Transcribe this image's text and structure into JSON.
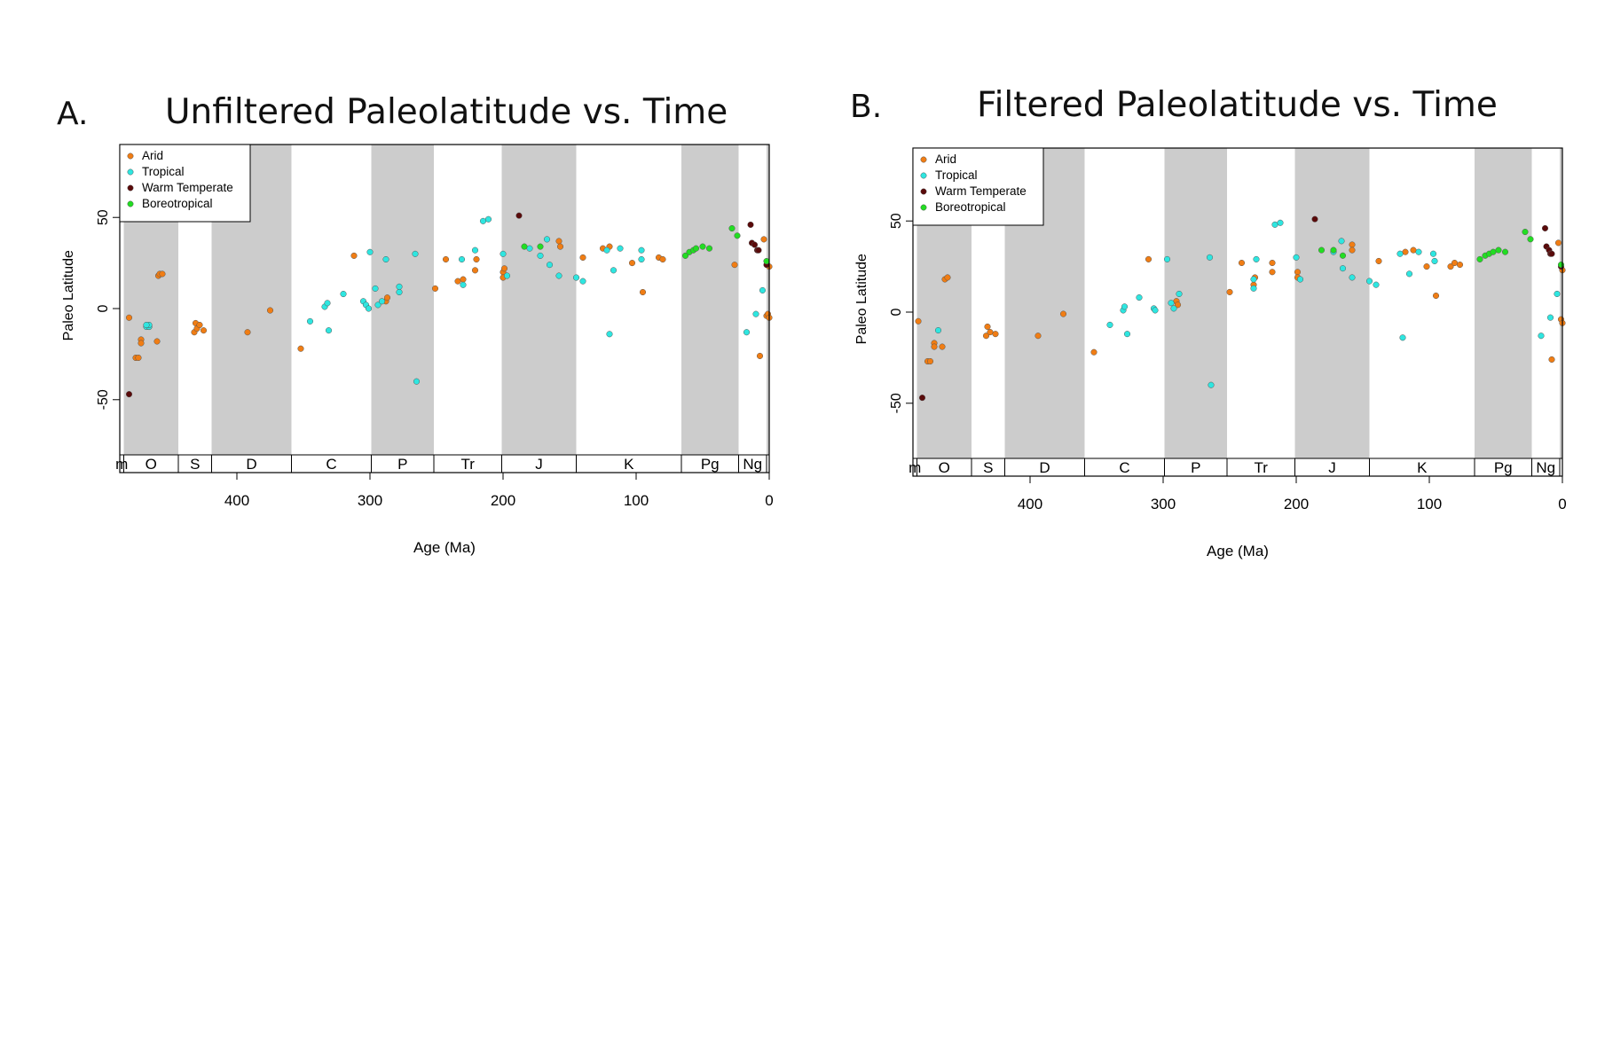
{
  "panels": [
    {
      "letter": "A.",
      "title": "Unfiltered Paleolatitude vs. Time"
    },
    {
      "letter": "B.",
      "title": "Filtered Paleolatitude vs. Time"
    }
  ],
  "colors": {
    "Arid": "#f07d14",
    "Tropical": "#2ee6e0",
    "Warm Temperate": "#5a0a0a",
    "Boreotropical": "#22dd22",
    "band": "#cccccc"
  },
  "periods": [
    {
      "label": "m",
      "start": 488,
      "end": 485,
      "shade": false
    },
    {
      "label": "O",
      "start": 485,
      "end": 444,
      "shade": true
    },
    {
      "label": "S",
      "start": 444,
      "end": 419,
      "shade": false
    },
    {
      "label": "D",
      "start": 419,
      "end": 359,
      "shade": true
    },
    {
      "label": "C",
      "start": 359,
      "end": 299,
      "shade": false
    },
    {
      "label": "P",
      "start": 299,
      "end": 252,
      "shade": true
    },
    {
      "label": "Tr",
      "start": 252,
      "end": 201,
      "shade": false
    },
    {
      "label": "J",
      "start": 201,
      "end": 145,
      "shade": true
    },
    {
      "label": "K",
      "start": 145,
      "end": 66,
      "shade": false
    },
    {
      "label": "Pg",
      "start": 66,
      "end": 23,
      "shade": true
    },
    {
      "label": "Ng",
      "start": 23,
      "end": 2,
      "shade": false
    },
    {
      "label": "",
      "start": 2,
      "end": 0,
      "shade": true
    }
  ],
  "chart_data": [
    {
      "type": "scatter",
      "title": "Unfiltered Paleolatitude vs. Time",
      "xlabel": "Age (Ma)",
      "ylabel": "Paleo Latitude",
      "xlim": [
        488,
        0
      ],
      "ylim": [
        -90,
        90
      ],
      "xticks": [
        400,
        300,
        200,
        100,
        0
      ],
      "yticks": [
        -50,
        0,
        50
      ],
      "legend_position": "top-left",
      "legend": [
        "Arid",
        "Tropical",
        "Warm Temperate",
        "Boreotropical"
      ],
      "series": [
        {
          "name": "Arid",
          "points": [
            [
              481,
              -5
            ],
            [
              476,
              -27
            ],
            [
              474,
              -27
            ],
            [
              472,
              -17
            ],
            [
              472,
              -19
            ],
            [
              466,
              -10
            ],
            [
              460,
              -18
            ],
            [
              459,
              18
            ],
            [
              458,
              19
            ],
            [
              456,
              19
            ],
            [
              432,
              -13
            ],
            [
              431,
              -8
            ],
            [
              430,
              -11
            ],
            [
              428,
              -9
            ],
            [
              425,
              -12
            ],
            [
              392,
              -13
            ],
            [
              375,
              -1
            ],
            [
              352,
              -22
            ],
            [
              312,
              29
            ],
            [
              288,
              4
            ],
            [
              287,
              6
            ],
            [
              251,
              11
            ],
            [
              243,
              27
            ],
            [
              234,
              15
            ],
            [
              230,
              16
            ],
            [
              221,
              21
            ],
            [
              220,
              27
            ],
            [
              200,
              20
            ],
            [
              199,
              22
            ],
            [
              200,
              17
            ],
            [
              158,
              37
            ],
            [
              157,
              34
            ],
            [
              140,
              28
            ],
            [
              125,
              33
            ],
            [
              120,
              34
            ],
            [
              103,
              25
            ],
            [
              95,
              9
            ],
            [
              83,
              28
            ],
            [
              80,
              27
            ],
            [
              26,
              24
            ],
            [
              7,
              -26
            ],
            [
              4,
              38
            ],
            [
              2,
              -4
            ],
            [
              1,
              -3
            ],
            [
              0,
              -5
            ],
            [
              0,
              23
            ]
          ]
        },
        {
          "name": "Tropical",
          "points": [
            [
              468,
              -10
            ],
            [
              466,
              -10
            ],
            [
              466,
              -9
            ],
            [
              468,
              -9
            ],
            [
              345,
              -7
            ],
            [
              334,
              1
            ],
            [
              332,
              3
            ],
            [
              331,
              -12
            ],
            [
              320,
              8
            ],
            [
              305,
              4
            ],
            [
              303,
              2
            ],
            [
              301,
              0
            ],
            [
              300,
              31
            ],
            [
              296,
              11
            ],
            [
              294,
              2
            ],
            [
              291,
              4
            ],
            [
              288,
              27
            ],
            [
              278,
              12
            ],
            [
              278,
              9
            ],
            [
              266,
              30
            ],
            [
              265,
              -40
            ],
            [
              231,
              27
            ],
            [
              230,
              13
            ],
            [
              221,
              32
            ],
            [
              215,
              48
            ],
            [
              211,
              49
            ],
            [
              200,
              30
            ],
            [
              197,
              18
            ],
            [
              180,
              33
            ],
            [
              172,
              29
            ],
            [
              167,
              38
            ],
            [
              165,
              24
            ],
            [
              158,
              18
            ],
            [
              145,
              17
            ],
            [
              140,
              15
            ],
            [
              122,
              32
            ],
            [
              120,
              -14
            ],
            [
              117,
              21
            ],
            [
              112,
              33
            ],
            [
              96,
              27
            ],
            [
              96,
              32
            ],
            [
              17,
              -13
            ],
            [
              10,
              -3
            ],
            [
              5,
              10
            ]
          ]
        },
        {
          "name": "Warm Temperate",
          "points": [
            [
              481,
              -47
            ],
            [
              188,
              51
            ],
            [
              14,
              46
            ],
            [
              13,
              36
            ],
            [
              11,
              35
            ],
            [
              9,
              32
            ],
            [
              8,
              32
            ],
            [
              2,
              24
            ]
          ]
        },
        {
          "name": "Boreotropical",
          "points": [
            [
              184,
              34
            ],
            [
              172,
              34
            ],
            [
              63,
              29
            ],
            [
              60,
              31
            ],
            [
              57,
              32
            ],
            [
              55,
              33
            ],
            [
              50,
              34
            ],
            [
              45,
              33
            ],
            [
              28,
              44
            ],
            [
              24,
              40
            ],
            [
              2,
              26
            ]
          ]
        }
      ]
    },
    {
      "type": "scatter",
      "title": "Filtered Paleolatitude vs. Time",
      "xlabel": "Age (Ma)",
      "ylabel": "Paleo Latitude",
      "xlim": [
        488,
        0
      ],
      "ylim": [
        -90,
        90
      ],
      "xticks": [
        400,
        300,
        200,
        100,
        0
      ],
      "yticks": [
        -50,
        0,
        50
      ],
      "legend_position": "top-left",
      "legend": [
        "Arid",
        "Tropical",
        "Warm Temperate",
        "Boreotropical"
      ],
      "series": [
        {
          "name": "Arid",
          "points": [
            [
              484,
              -5
            ],
            [
              477,
              -27
            ],
            [
              475,
              -27
            ],
            [
              472,
              -17
            ],
            [
              472,
              -19
            ],
            [
              466,
              -19
            ],
            [
              464,
              18
            ],
            [
              462,
              19
            ],
            [
              433,
              -13
            ],
            [
              432,
              -8
            ],
            [
              430,
              -11
            ],
            [
              426,
              -12
            ],
            [
              394,
              -13
            ],
            [
              375,
              -1
            ],
            [
              352,
              -22
            ],
            [
              311,
              29
            ],
            [
              290,
              6
            ],
            [
              289,
              4
            ],
            [
              250,
              11
            ],
            [
              241,
              27
            ],
            [
              232,
              15
            ],
            [
              231,
              19
            ],
            [
              218,
              22
            ],
            [
              218,
              27
            ],
            [
              199,
              22
            ],
            [
              199,
              19
            ],
            [
              158,
              37
            ],
            [
              158,
              34
            ],
            [
              138,
              28
            ],
            [
              118,
              33
            ],
            [
              112,
              34
            ],
            [
              102,
              25
            ],
            [
              95,
              9
            ],
            [
              84,
              25
            ],
            [
              81,
              27
            ],
            [
              77,
              26
            ],
            [
              8,
              -26
            ],
            [
              3,
              38
            ],
            [
              1,
              -4
            ],
            [
              0,
              -6
            ],
            [
              0,
              23
            ]
          ]
        },
        {
          "name": "Tropical",
          "points": [
            [
              469,
              -10
            ],
            [
              340,
              -7
            ],
            [
              330,
              1
            ],
            [
              329,
              3
            ],
            [
              327,
              -12
            ],
            [
              318,
              8
            ],
            [
              307,
              2
            ],
            [
              306,
              1
            ],
            [
              297,
              29
            ],
            [
              294,
              5
            ],
            [
              292,
              2
            ],
            [
              288,
              10
            ],
            [
              265,
              30
            ],
            [
              264,
              -40
            ],
            [
              232,
              18
            ],
            [
              232,
              13
            ],
            [
              230,
              29
            ],
            [
              216,
              48
            ],
            [
              212,
              49
            ],
            [
              200,
              30
            ],
            [
              197,
              18
            ],
            [
              172,
              33
            ],
            [
              166,
              39
            ],
            [
              165,
              24
            ],
            [
              158,
              19
            ],
            [
              145,
              17
            ],
            [
              140,
              15
            ],
            [
              122,
              32
            ],
            [
              120,
              -14
            ],
            [
              115,
              21
            ],
            [
              108,
              33
            ],
            [
              97,
              32
            ],
            [
              96,
              28
            ],
            [
              16,
              -13
            ],
            [
              9,
              -3
            ],
            [
              4,
              10
            ]
          ]
        },
        {
          "name": "Warm Temperate",
          "points": [
            [
              481,
              -47
            ],
            [
              186,
              51
            ],
            [
              13,
              46
            ],
            [
              12,
              36
            ],
            [
              10,
              34
            ],
            [
              9,
              32
            ],
            [
              8,
              32
            ],
            [
              1,
              25
            ]
          ]
        },
        {
          "name": "Boreotropical",
          "points": [
            [
              181,
              34
            ],
            [
              172,
              34
            ],
            [
              165,
              31
            ],
            [
              62,
              29
            ],
            [
              58,
              31
            ],
            [
              55,
              32
            ],
            [
              52,
              33
            ],
            [
              48,
              34
            ],
            [
              43,
              33
            ],
            [
              28,
              44
            ],
            [
              24,
              40
            ],
            [
              1,
              26
            ]
          ]
        }
      ]
    }
  ]
}
